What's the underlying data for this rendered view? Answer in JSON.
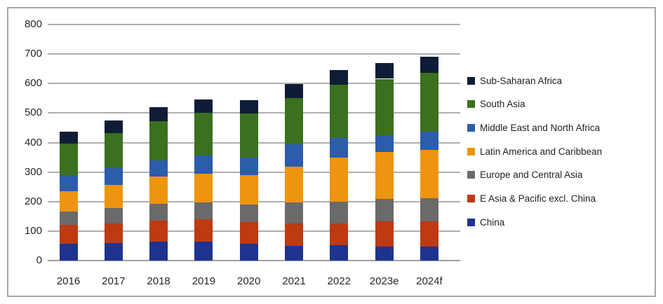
{
  "chart_data": {
    "type": "bar",
    "subtype": "stacked-column",
    "title": "",
    "xlabel": "",
    "ylabel": "",
    "categories": [
      "2016",
      "2017",
      "2018",
      "2019",
      "2020",
      "2021",
      "2022",
      "2023e",
      "2024f"
    ],
    "series": [
      {
        "name": "China",
        "color": "#1e3390",
        "values": [
          58,
          60,
          65,
          64,
          58,
          50,
          52,
          47,
          47
        ]
      },
      {
        "name": "E Asia & Pacific excl. China",
        "color": "#bd3a12",
        "values": [
          63,
          67,
          70,
          77,
          72,
          76,
          75,
          86,
          85
        ]
      },
      {
        "name": "Europe and Central Asia",
        "color": "#6a6a6a",
        "values": [
          45,
          50,
          58,
          55,
          59,
          70,
          73,
          75,
          80
        ]
      },
      {
        "name": "Latin America and Caribbean",
        "color": "#ee9410",
        "values": [
          70,
          79,
          93,
          99,
          101,
          122,
          150,
          161,
          162
        ]
      },
      {
        "name": "Middle East and North Africa",
        "color": "#2c5cac",
        "values": [
          53,
          57,
          54,
          61,
          60,
          76,
          66,
          55,
          63
        ]
      },
      {
        "name": "South Asia",
        "color": "#3a701e",
        "values": [
          108,
          119,
          133,
          145,
          148,
          156,
          180,
          192,
          199
        ]
      },
      {
        "name": "Sub-Saharan Africa",
        "color": "#101c36",
        "values": [
          40,
          43,
          48,
          46,
          45,
          48,
          50,
          53,
          55
        ]
      }
    ],
    "totals": [
      437,
      475,
      521,
      547,
      543,
      598,
      646,
      669,
      691
    ],
    "y_axis": {
      "min": 0,
      "max": 800,
      "step": 100,
      "tick_labels": [
        "0",
        "100",
        "200",
        "300",
        "400",
        "500",
        "600",
        "700",
        "800"
      ]
    },
    "legend": {
      "position": "right",
      "order_top_to_bottom": [
        "Sub-Saharan Africa",
        "South Asia",
        "Middle East and North Africa",
        "Latin America and Caribbean",
        "Europe and Central Asia",
        "E Asia & Pacific excl. China",
        "China"
      ]
    },
    "grid": true,
    "gridline_color": "#aeaeae",
    "border_color": "#a8a8a8",
    "background_color": "#ffffff"
  }
}
